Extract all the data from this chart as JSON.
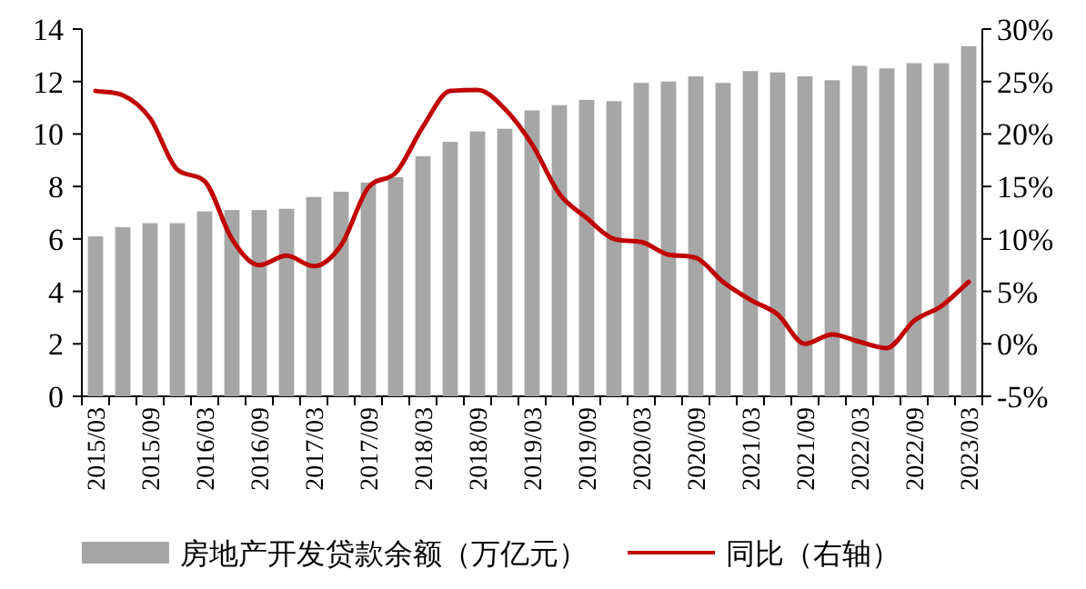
{
  "chart_data": {
    "type": "bar",
    "categories": [
      "2015/03",
      null,
      "2015/09",
      null,
      "2016/03",
      null,
      "2016/09",
      null,
      "2017/03",
      null,
      "2017/09",
      null,
      "2018/03",
      null,
      "2018/09",
      null,
      "2019/03",
      null,
      "2019/09",
      null,
      "2020/03",
      null,
      "2020/09",
      null,
      "2021/03",
      null,
      "2021/09",
      null,
      "2022/03",
      null,
      "2022/09",
      null,
      "2023/03"
    ],
    "series": [
      {
        "name": "房地产开发贷款余额（万亿元）",
        "color": "#a6a6a6",
        "values": [
          6.1,
          6.45,
          6.6,
          6.6,
          7.05,
          7.1,
          7.1,
          7.15,
          7.6,
          7.8,
          8.15,
          8.35,
          9.15,
          9.7,
          10.1,
          10.2,
          10.9,
          11.1,
          11.3,
          11.25,
          11.95,
          12.0,
          12.2,
          11.95,
          12.4,
          12.35,
          12.2,
          12.05,
          12.6,
          12.5,
          12.7,
          12.7,
          13.35
        ]
      },
      {
        "name": "同比（右轴）",
        "type": "line",
        "axis": "y2",
        "color": "#c00000",
        "values": [
          24.1,
          23.7,
          21.5,
          16.6,
          15.5,
          10.0,
          7.5,
          8.4,
          7.4,
          9.4,
          14.9,
          16.3,
          20.7,
          24.1,
          24.2,
          22.4,
          19.0,
          14.3,
          12.0,
          10.0,
          9.7,
          8.5,
          8.2,
          5.9,
          4.2,
          2.8,
          0,
          0.9,
          0.2,
          -0.4,
          2.2,
          3.6,
          5.9
        ]
      }
    ],
    "ylim": [
      0,
      14
    ],
    "yticks": [
      0,
      2,
      4,
      6,
      8,
      10,
      12,
      14
    ],
    "y2lim": [
      -5,
      30
    ],
    "y2ticks": [
      {
        "value": -5,
        "label": "-5%"
      },
      {
        "value": 0,
        "label": "0%"
      },
      {
        "value": 5,
        "label": "5%"
      },
      {
        "value": 10,
        "label": "10%"
      },
      {
        "value": 15,
        "label": "15%"
      },
      {
        "value": 20,
        "label": "20%"
      },
      {
        "value": 25,
        "label": "25%"
      },
      {
        "value": 30,
        "label": "30%"
      }
    ],
    "legend": "bottom"
  }
}
